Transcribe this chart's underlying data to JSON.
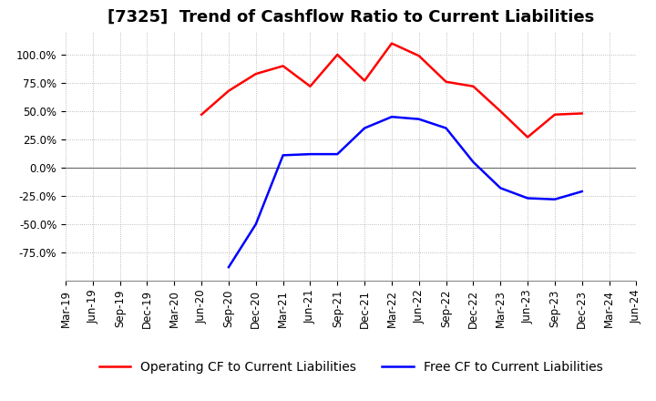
{
  "title": "[7325]  Trend of Cashflow Ratio to Current Liabilities",
  "xlabels": [
    "Mar-19",
    "Jun-19",
    "Sep-19",
    "Dec-19",
    "Mar-20",
    "Jun-20",
    "Sep-20",
    "Dec-20",
    "Mar-21",
    "Jun-21",
    "Sep-21",
    "Dec-21",
    "Mar-22",
    "Jun-22",
    "Sep-22",
    "Dec-22",
    "Mar-23",
    "Jun-23",
    "Sep-23",
    "Dec-23",
    "Mar-24",
    "Jun-24"
  ],
  "operating_cf": [
    null,
    null,
    null,
    null,
    null,
    0.47,
    0.68,
    0.83,
    0.9,
    0.72,
    1.0,
    0.77,
    1.1,
    0.99,
    0.76,
    0.72,
    0.5,
    0.27,
    0.47,
    0.48,
    null,
    null
  ],
  "free_cf": [
    null,
    null,
    null,
    null,
    null,
    null,
    -0.88,
    -0.5,
    0.11,
    0.12,
    0.12,
    0.35,
    0.45,
    0.43,
    0.35,
    0.05,
    -0.18,
    -0.27,
    -0.28,
    -0.21,
    null,
    null
  ],
  "operating_color": "#FF0000",
  "free_color": "#0000FF",
  "ylim": [
    -1.0,
    1.2
  ],
  "yticks": [
    -0.75,
    -0.5,
    -0.25,
    0.0,
    0.25,
    0.5,
    0.75,
    1.0
  ],
  "background_color": "#ffffff",
  "grid_color": "#aaaaaa",
  "title_fontsize": 13,
  "legend_fontsize": 10,
  "tick_fontsize": 8.5
}
